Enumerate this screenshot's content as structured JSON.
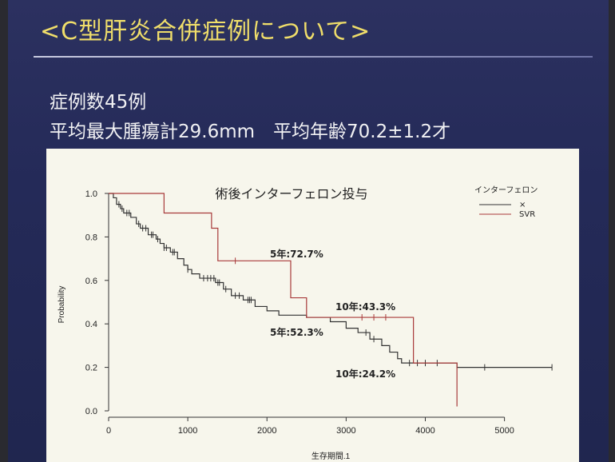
{
  "slide": {
    "title": "<C型肝炎合併症例について>",
    "line1": "症例数45例",
    "line2": "平均最大腫瘍計29.6mm　平均年齢70.2±1.2才"
  },
  "chart_data": {
    "type": "line",
    "title": "術後インターフェロン投与",
    "xlabel": "生存期間.1",
    "ylabel": "Probability",
    "xlim": [
      0,
      5700
    ],
    "ylim": [
      0,
      1.0
    ],
    "xticks": [
      0,
      1000,
      2000,
      3000,
      4000,
      5000
    ],
    "yticks": [
      "0.0",
      "0.2",
      "0.4",
      "0.6",
      "0.8",
      "1.0"
    ],
    "legend": {
      "title": "インターフェロン",
      "position": "top-right",
      "entries": [
        "×",
        "SVR"
      ]
    },
    "series": [
      {
        "name": "×",
        "color": "#333333",
        "steps": [
          [
            0,
            1.0
          ],
          [
            60,
            0.98
          ],
          [
            100,
            0.95
          ],
          [
            150,
            0.93
          ],
          [
            190,
            0.91
          ],
          [
            280,
            0.89
          ],
          [
            350,
            0.86
          ],
          [
            400,
            0.84
          ],
          [
            500,
            0.81
          ],
          [
            600,
            0.79
          ],
          [
            650,
            0.77
          ],
          [
            700,
            0.75
          ],
          [
            780,
            0.73
          ],
          [
            870,
            0.7
          ],
          [
            950,
            0.67
          ],
          [
            1000,
            0.65
          ],
          [
            1050,
            0.63
          ],
          [
            1150,
            0.61
          ],
          [
            1350,
            0.59
          ],
          [
            1450,
            0.56
          ],
          [
            1550,
            0.53
          ],
          [
            1700,
            0.51
          ],
          [
            1850,
            0.48
          ],
          [
            2000,
            0.46
          ],
          [
            2150,
            0.44
          ],
          [
            2500,
            0.43
          ],
          [
            2800,
            0.41
          ],
          [
            3000,
            0.38
          ],
          [
            3150,
            0.36
          ],
          [
            3300,
            0.33
          ],
          [
            3450,
            0.3
          ],
          [
            3550,
            0.27
          ],
          [
            3650,
            0.24
          ],
          [
            3700,
            0.22
          ],
          [
            4400,
            0.22
          ],
          [
            4400,
            0.2
          ],
          [
            5600,
            0.2
          ]
        ],
        "censored": [
          [
            130,
            0.95
          ],
          [
            170,
            0.93
          ],
          [
            230,
            0.91
          ],
          [
            260,
            0.91
          ],
          [
            380,
            0.86
          ],
          [
            430,
            0.84
          ],
          [
            470,
            0.84
          ],
          [
            540,
            0.81
          ],
          [
            560,
            0.81
          ],
          [
            620,
            0.79
          ],
          [
            700,
            0.75
          ],
          [
            730,
            0.75
          ],
          [
            810,
            0.73
          ],
          [
            830,
            0.73
          ],
          [
            1000,
            0.65
          ],
          [
            1200,
            0.61
          ],
          [
            1250,
            0.61
          ],
          [
            1290,
            0.61
          ],
          [
            1330,
            0.61
          ],
          [
            1380,
            0.59
          ],
          [
            1400,
            0.59
          ],
          [
            1480,
            0.56
          ],
          [
            1600,
            0.53
          ],
          [
            1650,
            0.53
          ],
          [
            1760,
            0.51
          ],
          [
            1780,
            0.51
          ],
          [
            1800,
            0.51
          ],
          [
            3250,
            0.36
          ],
          [
            3350,
            0.33
          ],
          [
            3800,
            0.22
          ],
          [
            3900,
            0.22
          ],
          [
            4000,
            0.22
          ],
          [
            4150,
            0.22
          ],
          [
            4750,
            0.2
          ],
          [
            5600,
            0.2
          ]
        ]
      },
      {
        "name": "SVR",
        "color": "#a83a3a",
        "steps": [
          [
            0,
            1.0
          ],
          [
            700,
            1.0
          ],
          [
            700,
            0.91
          ],
          [
            1300,
            0.91
          ],
          [
            1300,
            0.84
          ],
          [
            1380,
            0.84
          ],
          [
            1380,
            0.69
          ],
          [
            2300,
            0.69
          ],
          [
            2300,
            0.52
          ],
          [
            2500,
            0.52
          ],
          [
            2500,
            0.43
          ],
          [
            3850,
            0.43
          ],
          [
            3850,
            0.22
          ],
          [
            4400,
            0.22
          ],
          [
            4400,
            0.02
          ]
        ],
        "censored": [
          [
            1600,
            0.69
          ],
          [
            3200,
            0.43
          ],
          [
            3350,
            0.43
          ],
          [
            3500,
            0.43
          ]
        ]
      }
    ],
    "annotations": [
      "5年:72.7%",
      "5年:52.3%",
      "10年:43.3%",
      "10年:24.2%"
    ]
  }
}
